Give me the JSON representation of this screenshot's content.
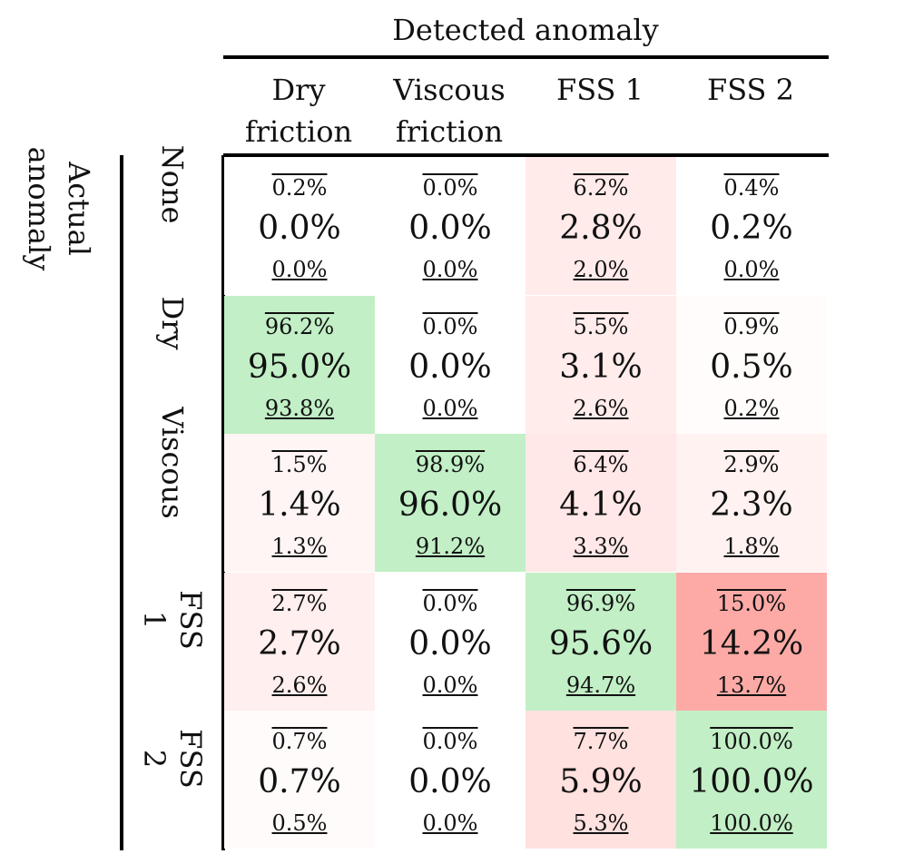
{
  "chart_data": {
    "type": "table",
    "title": "Detected anomaly",
    "ylabel": "Actual anomaly",
    "columns": [
      "Dry friction",
      "Viscous friction",
      "FSS 1",
      "FSS 2"
    ],
    "rows": [
      "None",
      "Dry",
      "Viscous",
      "FSS 1",
      "FSS 2"
    ],
    "cells": [
      [
        {
          "upper": "0.2%",
          "value": "0.0%",
          "lower": "0.0%",
          "color": "#ffffff"
        },
        {
          "upper": "0.0%",
          "value": "0.0%",
          "lower": "0.0%",
          "color": "#ffffff"
        },
        {
          "upper": "6.2%",
          "value": "2.8%",
          "lower": "2.0%",
          "color": "#ffebea"
        },
        {
          "upper": "0.4%",
          "value": "0.2%",
          "lower": "0.0%",
          "color": "#ffffff"
        }
      ],
      [
        {
          "upper": "96.2%",
          "value": "95.0%",
          "lower": "93.8%",
          "color": "#c2efc6"
        },
        {
          "upper": "0.0%",
          "value": "0.0%",
          "lower": "0.0%",
          "color": "#ffffff"
        },
        {
          "upper": "5.5%",
          "value": "3.1%",
          "lower": "2.6%",
          "color": "#ffeceb"
        },
        {
          "upper": "0.9%",
          "value": "0.5%",
          "lower": "0.2%",
          "color": "#fffcfb"
        }
      ],
      [
        {
          "upper": "1.5%",
          "value": "1.4%",
          "lower": "1.3%",
          "color": "#fff5f5"
        },
        {
          "upper": "98.9%",
          "value": "96.0%",
          "lower": "91.2%",
          "color": "#c2efc6"
        },
        {
          "upper": "6.4%",
          "value": "4.1%",
          "lower": "3.3%",
          "color": "#ffe8e7"
        },
        {
          "upper": "2.9%",
          "value": "2.3%",
          "lower": "1.8%",
          "color": "#fff2f1"
        }
      ],
      [
        {
          "upper": "2.7%",
          "value": "2.7%",
          "lower": "2.6%",
          "color": "#ffefee"
        },
        {
          "upper": "0.0%",
          "value": "0.0%",
          "lower": "0.0%",
          "color": "#ffffff"
        },
        {
          "upper": "96.9%",
          "value": "95.6%",
          "lower": "94.7%",
          "color": "#c2efc6"
        },
        {
          "upper": "15.0%",
          "value": "14.2%",
          "lower": "13.7%",
          "color": "#fdaaa6"
        }
      ],
      [
        {
          "upper": "0.7%",
          "value": "0.7%",
          "lower": "0.5%",
          "color": "#fffbfa"
        },
        {
          "upper": "0.0%",
          "value": "0.0%",
          "lower": "0.0%",
          "color": "#ffffff"
        },
        {
          "upper": "7.7%",
          "value": "5.9%",
          "lower": "5.3%",
          "color": "#ffe1df"
        },
        {
          "upper": "100.0%",
          "value": "100.0%",
          "lower": "100.0%",
          "color": "#c2efc6"
        }
      ]
    ]
  },
  "header": {
    "title": "Detected anomaly",
    "col_labels": [
      {
        "line1": "Dry",
        "line2": "friction"
      },
      {
        "line1": "Viscous",
        "line2": "friction"
      },
      {
        "line1": "FSS 1",
        "line2": ""
      },
      {
        "line1": "FSS 2",
        "line2": ""
      }
    ]
  },
  "side": {
    "title_line1": "Actual",
    "title_line2": "anomaly",
    "row_labels": [
      {
        "line1": "None",
        "line2": ""
      },
      {
        "line1": "Dry",
        "line2": ""
      },
      {
        "line1": "Viscous",
        "line2": ""
      },
      {
        "line1": "FSS",
        "line2": "1"
      },
      {
        "line1": "FSS",
        "line2": "2"
      }
    ]
  }
}
